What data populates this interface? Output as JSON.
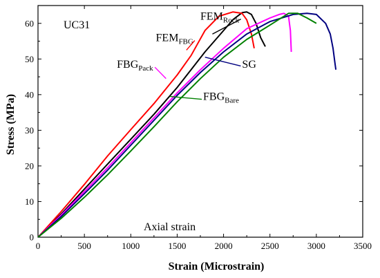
{
  "chart_data": {
    "type": "line",
    "title": "",
    "xlabel": "Strain (Microstrain)",
    "ylabel": "Stress (MPa)",
    "xlim": [
      0,
      3500
    ],
    "ylim": [
      0,
      65
    ],
    "xticks": [
      0,
      500,
      1000,
      1500,
      2000,
      2500,
      3000,
      3500
    ],
    "yticks": [
      0,
      10,
      20,
      30,
      40,
      50,
      60
    ],
    "grid": false,
    "legend": "none",
    "annotations": {
      "specimen": "UC31",
      "mode": "Axial strain"
    },
    "series": [
      {
        "name": "FEM",
        "name_subscript": "Rock",
        "color": "#000000",
        "points": [
          [
            0,
            0
          ],
          [
            250,
            6.5
          ],
          [
            500,
            13.5
          ],
          [
            750,
            20.5
          ],
          [
            1000,
            27.5
          ],
          [
            1250,
            34.5
          ],
          [
            1500,
            42
          ],
          [
            1650,
            47
          ],
          [
            1800,
            52
          ],
          [
            2000,
            58
          ],
          [
            2100,
            61
          ],
          [
            2200,
            63
          ],
          [
            2250,
            63.2
          ],
          [
            2300,
            62.5
          ],
          [
            2350,
            60
          ],
          [
            2400,
            56
          ],
          [
            2450,
            53.5
          ]
        ]
      },
      {
        "name": "FEM",
        "name_subscript": "FBG",
        "color": "#ff0000",
        "points": [
          [
            0,
            0
          ],
          [
            250,
            7.2
          ],
          [
            500,
            14.8
          ],
          [
            750,
            22.8
          ],
          [
            1000,
            30.2
          ],
          [
            1250,
            37.5
          ],
          [
            1500,
            45.5
          ],
          [
            1650,
            51
          ],
          [
            1800,
            58
          ],
          [
            1950,
            62
          ],
          [
            2100,
            63.2
          ],
          [
            2200,
            62.8
          ],
          [
            2250,
            61
          ],
          [
            2300,
            57
          ],
          [
            2330,
            53
          ]
        ]
      },
      {
        "name": "FBG",
        "name_subscript": "Pack",
        "color": "#ff00ff",
        "points": [
          [
            0,
            0
          ],
          [
            250,
            6.2
          ],
          [
            500,
            12.8
          ],
          [
            750,
            19.5
          ],
          [
            1000,
            26.5
          ],
          [
            1250,
            33.5
          ],
          [
            1500,
            40.5
          ],
          [
            1750,
            47
          ],
          [
            2000,
            53
          ],
          [
            2250,
            58.5
          ],
          [
            2500,
            61.5
          ],
          [
            2600,
            62.5
          ],
          [
            2650,
            62.8
          ],
          [
            2700,
            62
          ],
          [
            2720,
            58
          ],
          [
            2730,
            52
          ]
        ]
      },
      {
        "name": "SG",
        "name_subscript": "",
        "color": "#000080",
        "points": [
          [
            0,
            0
          ],
          [
            250,
            5.8
          ],
          [
            500,
            12.2
          ],
          [
            750,
            18.8
          ],
          [
            1000,
            25.8
          ],
          [
            1250,
            32.8
          ],
          [
            1500,
            39.8
          ],
          [
            1750,
            46.2
          ],
          [
            2000,
            52
          ],
          [
            2250,
            57
          ],
          [
            2500,
            60.5
          ],
          [
            2750,
            62.5
          ],
          [
            2900,
            62.8
          ],
          [
            3000,
            62.5
          ],
          [
            3100,
            60
          ],
          [
            3150,
            57
          ],
          [
            3180,
            53
          ],
          [
            3200,
            49
          ],
          [
            3210,
            47
          ]
        ]
      },
      {
        "name": "FBG",
        "name_subscript": "Bare",
        "color": "#008000",
        "points": [
          [
            0,
            0
          ],
          [
            250,
            5.3
          ],
          [
            500,
            11.2
          ],
          [
            750,
            17.5
          ],
          [
            1000,
            24.2
          ],
          [
            1250,
            31
          ],
          [
            1500,
            38
          ],
          [
            1750,
            44.5
          ],
          [
            2000,
            50.5
          ],
          [
            2250,
            55.5
          ],
          [
            2500,
            59.5
          ],
          [
            2700,
            62.8
          ],
          [
            2800,
            62.8
          ],
          [
            2900,
            61.5
          ],
          [
            3000,
            60
          ]
        ]
      }
    ],
    "labels": [
      {
        "series": 0,
        "text": "FEM",
        "sub": "Rock",
        "pos": [
          1750,
          61
        ],
        "arrow_to": [
          1880,
          57
        ]
      },
      {
        "series": 1,
        "text": "FEM",
        "sub": "FBG",
        "pos": [
          1270,
          55
        ],
        "arrow_to": [
          1600,
          52.5
        ]
      },
      {
        "series": 2,
        "text": "FBG",
        "sub": "Pack",
        "pos": [
          850,
          47.5
        ],
        "arrow_to": [
          1380,
          44.5
        ]
      },
      {
        "series": 3,
        "text": "SG",
        "sub": "",
        "pos": [
          2200,
          47.5
        ],
        "arrow_to": [
          1800,
          50.5
        ]
      },
      {
        "series": 4,
        "text": "FBG",
        "sub": "Bare",
        "pos": [
          1780,
          38.5
        ],
        "arrow_to": [
          1420,
          39.5
        ]
      }
    ]
  }
}
